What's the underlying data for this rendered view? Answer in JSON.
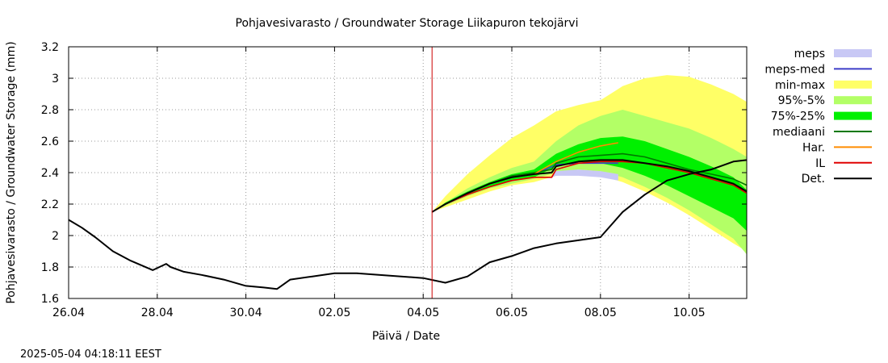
{
  "chart_data": {
    "type": "area",
    "title": "Pohjavesivarasto / Groundwater Storage   Liikapuron tekojärvi",
    "xlabel": "Päivä / Date",
    "ylabel": "Pohjavesivarasto / Groundwater Storage (mm)",
    "x_range_days": [
      0,
      15.3
    ],
    "ylim": [
      1.6,
      3.2
    ],
    "y_ticks": [
      1.6,
      1.8,
      2.0,
      2.2,
      2.4,
      2.6,
      2.8,
      3.0,
      3.2
    ],
    "y_tick_labels": [
      "1.6",
      "1.8",
      "2",
      "2.2",
      "2.4",
      "2.6",
      "2.8",
      "3",
      "3.2"
    ],
    "x_ticks": [
      0,
      2,
      4,
      6,
      8,
      10,
      12,
      14
    ],
    "x_tick_labels": [
      "26.04",
      "28.04",
      "30.04",
      "02.05",
      "04.05",
      "06.05",
      "08.05",
      "10.05"
    ],
    "grid": true,
    "legend_position": "right",
    "forecast_start_day": 8.2,
    "timestamp": "2025-05-04 04:18:11 EEST",
    "legend": [
      {
        "label": "meps",
        "color": "#c8c8f5",
        "kind": "band"
      },
      {
        "label": "meps-med",
        "color": "#3c3cc8",
        "kind": "line"
      },
      {
        "label": "min-max",
        "color": "#ffff66",
        "kind": "band"
      },
      {
        "label": "95%-5%",
        "color": "#b3ff66",
        "kind": "band"
      },
      {
        "label": "75%-25%",
        "color": "#00f000",
        "kind": "band"
      },
      {
        "label": "mediaani",
        "color": "#007800",
        "kind": "line"
      },
      {
        "label": "Har.",
        "color": "#ff8c00",
        "kind": "line"
      },
      {
        "label": "IL",
        "color": "#e00000",
        "kind": "line"
      },
      {
        "label": "Det.",
        "color": "#000000",
        "kind": "line"
      }
    ],
    "series": [
      {
        "name": "Det.",
        "color": "#000000",
        "x": [
          0,
          0.3,
          0.6,
          1.0,
          1.4,
          1.9,
          2.2,
          2.3,
          2.6,
          3.0,
          3.5,
          4.0,
          4.4,
          4.7,
          4.8,
          5.0,
          5.5,
          6.0,
          6.5,
          7.0,
          7.5,
          8.0,
          8.5,
          9.0,
          9.5,
          10.0,
          10.5,
          11.0,
          11.5,
          12.0,
          12.5,
          13.0,
          13.5,
          14.0,
          14.5,
          15.0,
          15.3
        ],
        "y": [
          2.1,
          2.05,
          1.99,
          1.9,
          1.84,
          1.78,
          1.82,
          1.8,
          1.77,
          1.75,
          1.72,
          1.68,
          1.67,
          1.66,
          1.68,
          1.72,
          1.74,
          1.76,
          1.76,
          1.75,
          1.74,
          1.73,
          1.7,
          1.74,
          1.83,
          1.87,
          1.92,
          1.95,
          1.97,
          1.99,
          2.15,
          2.26,
          2.35,
          2.39,
          2.42,
          2.47,
          2.48
        ]
      },
      {
        "name": "Det. forecast",
        "color": "#000000",
        "x": [
          8.2,
          8.5,
          9.0,
          9.5,
          10.0,
          10.5,
          10.9,
          11.0,
          11.5,
          12.0,
          12.5,
          13.0,
          13.5,
          14.0,
          14.5,
          15.0,
          15.3
        ],
        "y": [
          2.15,
          2.2,
          2.27,
          2.33,
          2.37,
          2.39,
          2.4,
          2.44,
          2.47,
          2.48,
          2.48,
          2.46,
          2.44,
          2.41,
          2.37,
          2.33,
          2.28
        ]
      },
      {
        "name": "IL",
        "color": "#e00000",
        "x": [
          8.2,
          8.5,
          9.0,
          9.5,
          10.0,
          10.5,
          10.9,
          11.0,
          11.5,
          12.0,
          12.5,
          13.0,
          13.5,
          14.0,
          14.5,
          15.0,
          15.3
        ],
        "y": [
          2.15,
          2.2,
          2.26,
          2.31,
          2.35,
          2.37,
          2.37,
          2.42,
          2.46,
          2.47,
          2.47,
          2.46,
          2.43,
          2.4,
          2.36,
          2.32,
          2.27
        ]
      },
      {
        "name": "Har.",
        "color": "#ff8c00",
        "x": [
          8.2,
          8.5,
          9.0,
          9.5,
          10.0,
          10.5,
          11.0,
          11.5,
          12.0,
          12.4
        ],
        "y": [
          2.15,
          2.2,
          2.27,
          2.33,
          2.37,
          2.39,
          2.47,
          2.53,
          2.57,
          2.59
        ]
      },
      {
        "name": "mediaani",
        "color": "#007800",
        "x": [
          8.2,
          8.5,
          9.0,
          9.5,
          10.0,
          10.5,
          10.9,
          11.0,
          11.5,
          12.0,
          12.5,
          13.0,
          13.5,
          14.0,
          14.5,
          15.0,
          15.3
        ],
        "y": [
          2.15,
          2.2,
          2.27,
          2.33,
          2.38,
          2.4,
          2.42,
          2.46,
          2.5,
          2.51,
          2.52,
          2.5,
          2.46,
          2.42,
          2.39,
          2.36,
          2.32
        ]
      },
      {
        "name": "meps-med",
        "color": "#3c3cc8",
        "x": [
          8.2,
          8.5,
          9.0,
          9.5,
          10.0,
          10.5,
          11.0,
          11.5,
          12.0,
          12.4
        ],
        "y": [
          2.15,
          2.2,
          2.27,
          2.33,
          2.37,
          2.39,
          2.45,
          2.46,
          2.46,
          2.46
        ]
      }
    ],
    "bands": [
      {
        "name": "min-max",
        "color": "#ffff66",
        "x": [
          8.2,
          8.5,
          9.0,
          9.5,
          10.0,
          10.5,
          11.0,
          11.5,
          12.0,
          12.5,
          13.0,
          13.5,
          14.0,
          14.5,
          15.0,
          15.3
        ],
        "upper": [
          2.15,
          2.25,
          2.39,
          2.51,
          2.62,
          2.7,
          2.79,
          2.83,
          2.86,
          2.95,
          3.0,
          3.02,
          3.01,
          2.96,
          2.9,
          2.85
        ],
        "lower": [
          2.15,
          2.18,
          2.23,
          2.28,
          2.32,
          2.34,
          2.38,
          2.4,
          2.38,
          2.34,
          2.28,
          2.21,
          2.13,
          2.04,
          1.95,
          1.9
        ]
      },
      {
        "name": "95%-5%",
        "color": "#b3ff66",
        "x": [
          8.2,
          8.5,
          9.0,
          9.5,
          10.0,
          10.5,
          11.0,
          11.5,
          12.0,
          12.5,
          13.0,
          13.5,
          14.0,
          14.5,
          15.0,
          15.3
        ],
        "upper": [
          2.15,
          2.21,
          2.3,
          2.37,
          2.43,
          2.47,
          2.6,
          2.7,
          2.76,
          2.8,
          2.76,
          2.72,
          2.68,
          2.62,
          2.55,
          2.5
        ],
        "lower": [
          2.15,
          2.19,
          2.25,
          2.3,
          2.33,
          2.36,
          2.4,
          2.42,
          2.41,
          2.37,
          2.31,
          2.24,
          2.16,
          2.07,
          1.98,
          1.88
        ]
      },
      {
        "name": "75%-25%",
        "color": "#00f000",
        "x": [
          8.2,
          8.5,
          9.0,
          9.5,
          10.0,
          10.5,
          11.0,
          11.5,
          12.0,
          12.5,
          13.0,
          13.5,
          14.0,
          14.5,
          15.0,
          15.3
        ],
        "upper": [
          2.15,
          2.21,
          2.28,
          2.34,
          2.39,
          2.42,
          2.52,
          2.58,
          2.62,
          2.63,
          2.6,
          2.55,
          2.5,
          2.44,
          2.37,
          2.29
        ],
        "lower": [
          2.15,
          2.2,
          2.26,
          2.31,
          2.35,
          2.37,
          2.44,
          2.47,
          2.46,
          2.43,
          2.38,
          2.32,
          2.25,
          2.18,
          2.11,
          2.03
        ]
      },
      {
        "name": "meps",
        "color": "#c8c8f5",
        "x": [
          10.9,
          11.0,
          11.5,
          12.0,
          12.4
        ],
        "upper": [
          2.38,
          2.41,
          2.42,
          2.41,
          2.39
        ],
        "lower": [
          2.37,
          2.38,
          2.38,
          2.37,
          2.35
        ]
      }
    ]
  }
}
